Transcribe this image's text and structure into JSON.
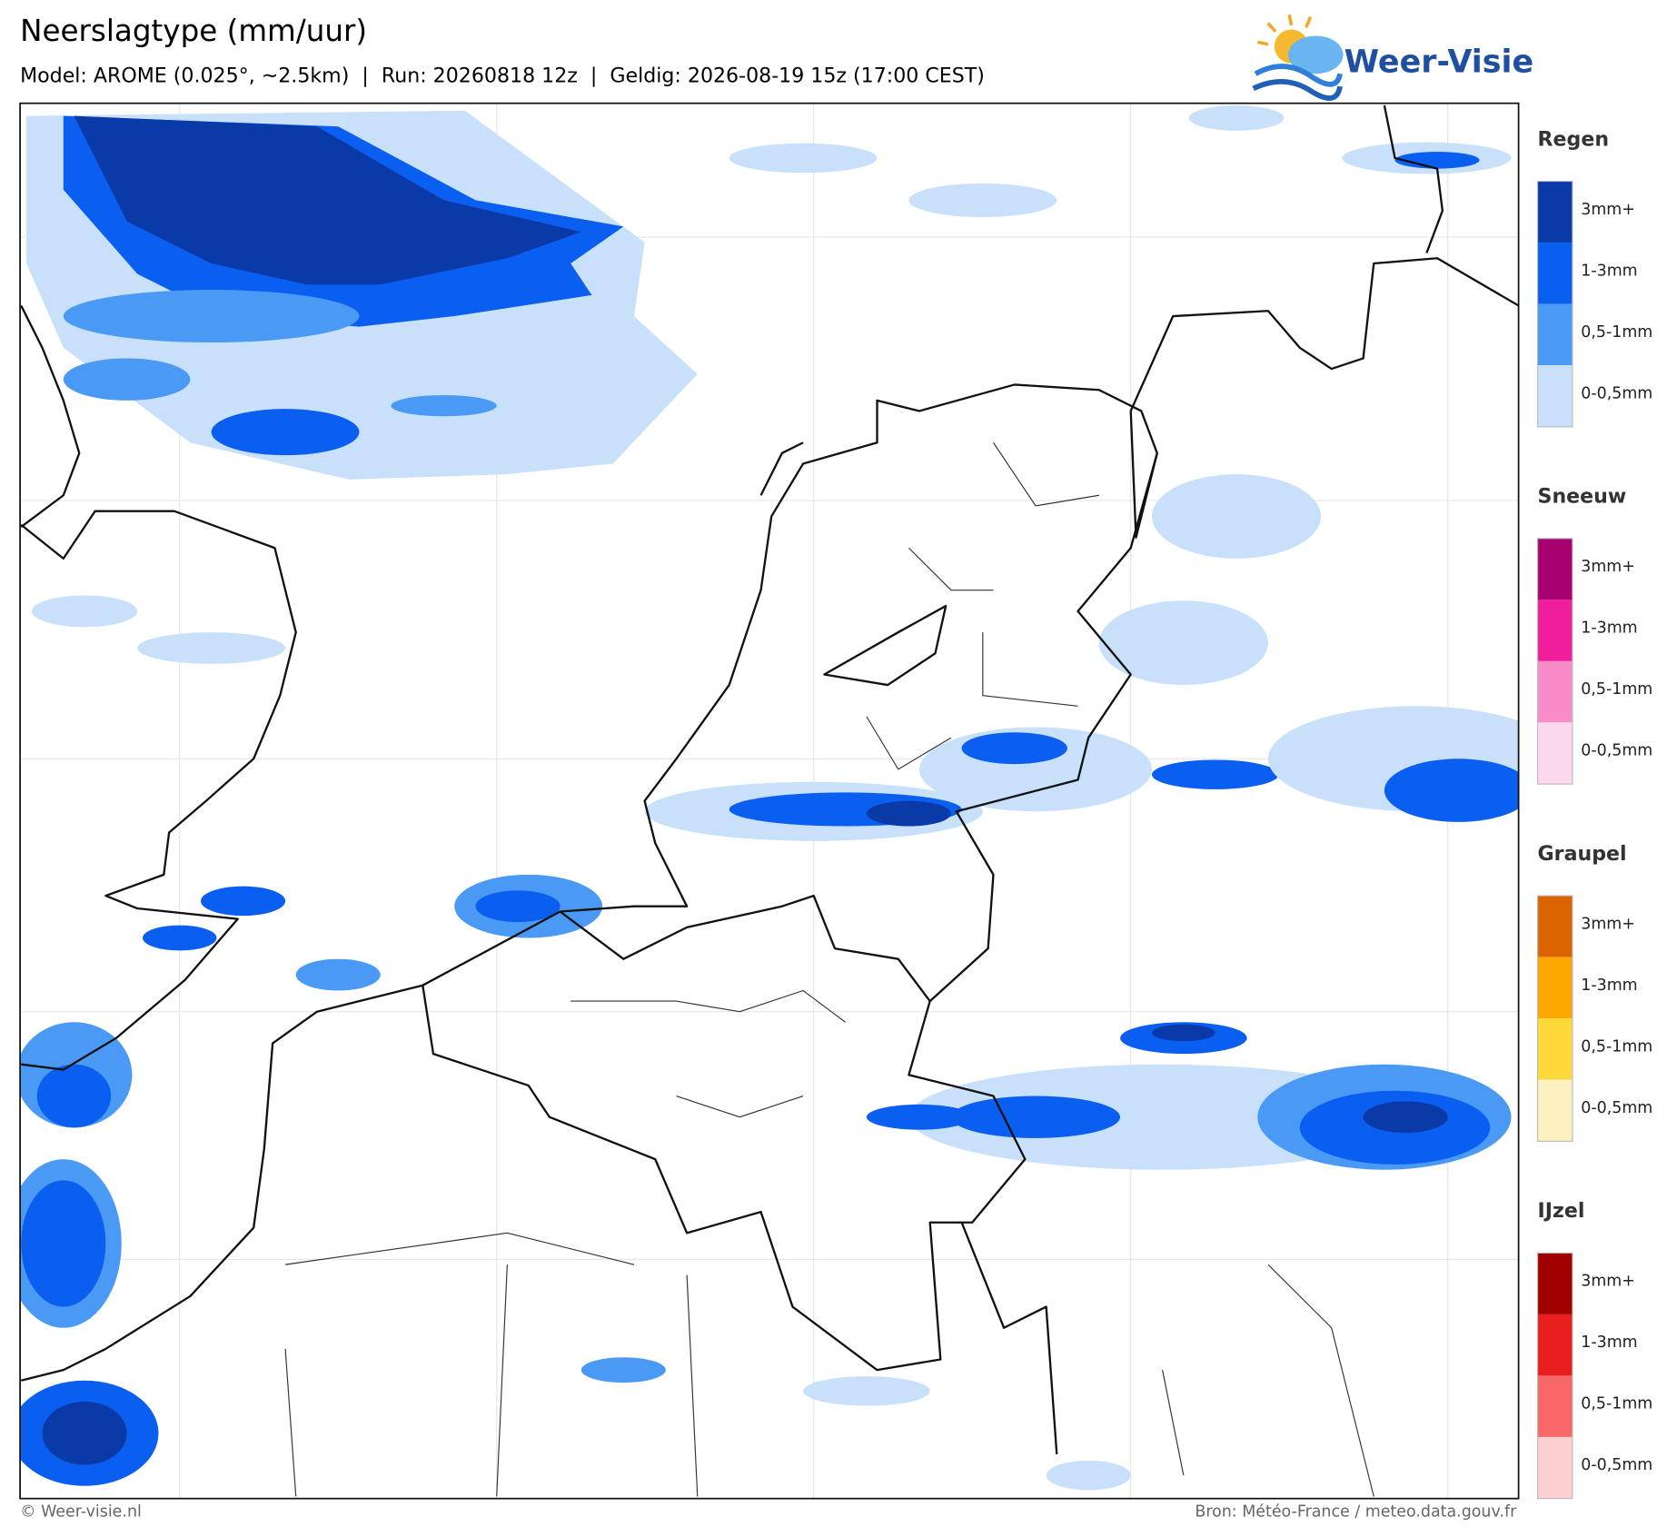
{
  "header": {
    "title": "Neerslagtype (mm/uur)",
    "subtitle": "Model: AROME (0.025°, ~2.5km)  |  Run: 20260818 12z  |  Geldig: 2026-08-19 15z (17:00 CEST)"
  },
  "logo": {
    "text": "Weer-Visie"
  },
  "legend": [
    {
      "title": "Regen",
      "levels": [
        {
          "label": "3mm+",
          "color": "#0a3aa8"
        },
        {
          "label": "1-3mm",
          "color": "#0a5ef0"
        },
        {
          "label": "0,5-1mm",
          "color": "#4a9af5"
        },
        {
          "label": "0-0,5mm",
          "color": "#c8e0fa"
        }
      ]
    },
    {
      "title": "Sneeuw",
      "levels": [
        {
          "label": "3mm+",
          "color": "#a8006e"
        },
        {
          "label": "1-3mm",
          "color": "#f01e9a"
        },
        {
          "label": "0,5-1mm",
          "color": "#f78cc8"
        },
        {
          "label": "0-0,5mm",
          "color": "#fcd8ec"
        }
      ]
    },
    {
      "title": "Graupel",
      "levels": [
        {
          "label": "3mm+",
          "color": "#dc6400"
        },
        {
          "label": "1-3mm",
          "color": "#fca800"
        },
        {
          "label": "0,5-1mm",
          "color": "#fcd838"
        },
        {
          "label": "0-0,5mm",
          "color": "#fdf0c0"
        }
      ]
    },
    {
      "title": "IJzel",
      "levels": [
        {
          "label": "3mm+",
          "color": "#a00000"
        },
        {
          "label": "1-3mm",
          "color": "#e81e1e"
        },
        {
          "label": "0,5-1mm",
          "color": "#f86868"
        },
        {
          "label": "0-0,5mm",
          "color": "#fcd0d0"
        }
      ]
    }
  ],
  "footer": {
    "left": "© Weer-visie.nl",
    "right": "Bron: Météo-France / meteo.data.gouv.fr"
  }
}
